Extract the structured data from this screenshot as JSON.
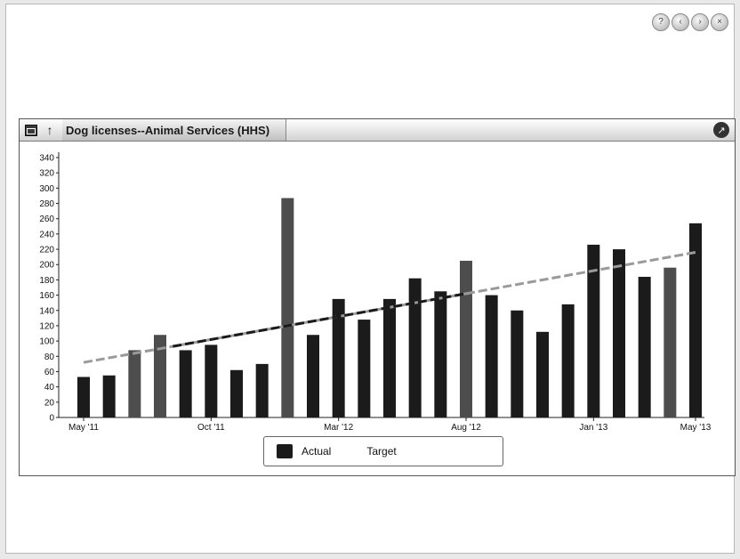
{
  "window_controls": [
    {
      "name": "help-icon",
      "glyph": "?"
    },
    {
      "name": "back-icon",
      "glyph": "‹"
    },
    {
      "name": "forward-icon",
      "glyph": "›"
    },
    {
      "name": "close-icon",
      "glyph": "×"
    }
  ],
  "widget": {
    "title": "Dog licenses--Animal Services (HHS)",
    "up_icon": "arrow-up-icon",
    "minimize_icon": "minimize-icon",
    "popout_icon": "popout-icon"
  },
  "colors": {
    "bar_dark": "#1b1b1b",
    "bar_gray": "#4d4d4d",
    "trend_dark": "#1a1a1a",
    "trend_light": "#9a9a9a"
  },
  "legend": {
    "actual": "Actual",
    "target": "Target"
  },
  "chart_data": {
    "type": "bar",
    "y_ticks": [
      0,
      20,
      40,
      60,
      80,
      100,
      120,
      140,
      160,
      180,
      200,
      220,
      240,
      260,
      280,
      300,
      320,
      340
    ],
    "ylim": [
      0,
      340
    ],
    "x_tick_labels": [
      {
        "index": 0,
        "label": "May '11"
      },
      {
        "index": 5,
        "label": "Oct '11"
      },
      {
        "index": 10,
        "label": "Mar '12"
      },
      {
        "index": 15,
        "label": "Aug '12"
      },
      {
        "index": 20,
        "label": "Jan '13"
      },
      {
        "index": 24,
        "label": "May '13"
      }
    ],
    "series": [
      {
        "name": "Actual",
        "values": [
          53,
          55,
          88,
          108,
          88,
          95,
          62,
          70,
          287,
          108,
          155,
          128,
          155,
          182,
          165,
          205,
          160,
          140,
          112,
          148,
          226,
          220,
          184,
          196,
          254
        ],
        "highlight": [
          false,
          false,
          true,
          true,
          false,
          false,
          false,
          false,
          true,
          false,
          false,
          false,
          false,
          false,
          false,
          true,
          false,
          false,
          false,
          false,
          false,
          false,
          false,
          true,
          false
        ]
      }
    ],
    "target": {
      "name": "Target",
      "start_value": 72,
      "end_value": 216
    },
    "legend_position": "bottom",
    "grid": false
  }
}
